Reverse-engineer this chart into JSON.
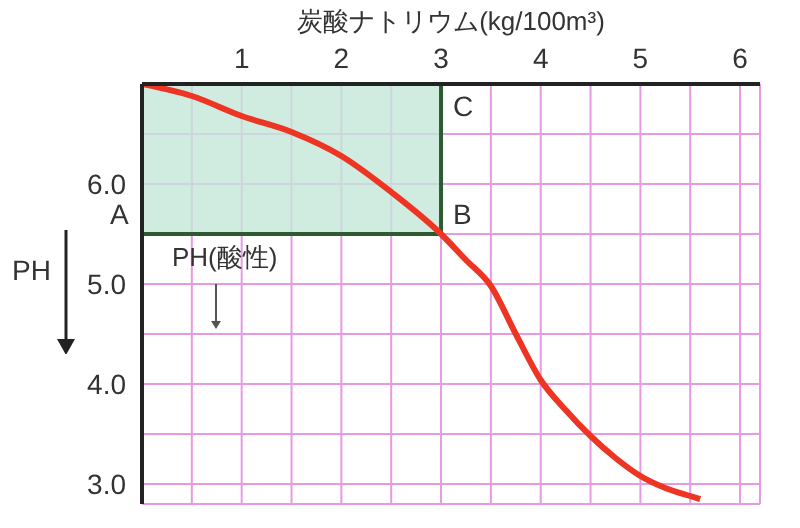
{
  "chart_data": {
    "type": "line",
    "xlabel": "炭酸ナトリウム(kg/100m³)",
    "ylabel": "PH",
    "x": [
      0,
      0.5,
      1,
      1.5,
      2,
      2.5,
      3,
      3.25,
      3.5,
      3.75,
      4,
      4.25,
      4.5,
      4.75,
      5,
      5.25,
      5.5,
      5.6
    ],
    "series": [
      {
        "color": "#ee3524",
        "values": [
          7.0,
          6.88,
          6.68,
          6.52,
          6.28,
          5.92,
          5.5,
          5.24,
          4.98,
          4.5,
          4.04,
          3.74,
          3.48,
          3.26,
          3.08,
          2.96,
          2.88,
          2.85
        ]
      }
    ],
    "xlim": [
      0,
      6.2
    ],
    "ylim": [
      2.8,
      7.0
    ],
    "xticks": [
      {
        "value": 0.5,
        "label": null
      },
      1,
      {
        "value": 1.5,
        "label": null
      },
      2,
      {
        "value": 2.5,
        "label": null
      },
      3,
      {
        "value": 3.5,
        "label": null
      },
      4,
      {
        "value": 4.5,
        "label": null
      },
      5,
      {
        "value": 5.5,
        "label": null
      },
      6
    ],
    "yticks": [
      {
        "value": 3,
        "label": "3.0"
      },
      {
        "value": 3.5,
        "label": null
      },
      {
        "value": 4,
        "label": "4.0"
      },
      {
        "value": 4.5,
        "label": null
      },
      {
        "value": 5,
        "label": "5.0"
      },
      {
        "value": 5.5,
        "label": null
      },
      {
        "value": 6,
        "label": "6.0"
      },
      {
        "value": 6.5,
        "label": null
      }
    ],
    "grid": true,
    "marker": "none",
    "line_style": "solid",
    "bands": [
      {
        "axis": "x",
        "from": 0,
        "to": 3,
        "color": "#c4e6d8"
      }
    ],
    "ref_lines": [
      {
        "axis": "y",
        "value": 5.5,
        "color": "#2f5a2f"
      },
      {
        "axis": "x",
        "value": 3,
        "color": "#2f5a2f"
      }
    ],
    "annotations": [
      "A",
      {
        "text": "B",
        "x": 3,
        "y": 5.5
      },
      {
        "text": "C",
        "x": 3,
        "y": 7.0
      },
      "PH(酸性)"
    ]
  }
}
